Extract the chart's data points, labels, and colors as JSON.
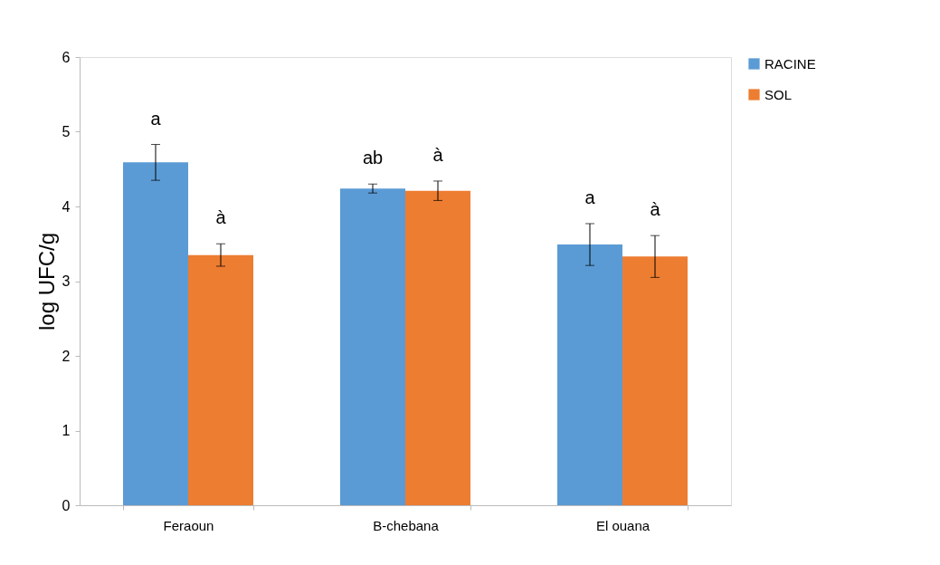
{
  "chart_data": {
    "type": "bar",
    "ylabel": "log UFC/g",
    "categories": [
      "Feraoun",
      "B-chebana",
      "El ouana"
    ],
    "series": [
      {
        "name": "RACINE",
        "color": "#5b9bd5",
        "values": [
          4.59,
          4.24,
          3.49
        ],
        "errors": [
          0.24,
          0.06,
          0.28
        ]
      },
      {
        "name": "SOL",
        "color": "#ed7d31",
        "values": [
          3.35,
          4.21,
          3.33
        ],
        "errors": [
          0.15,
          0.13,
          0.28
        ]
      }
    ],
    "ylim": [
      0,
      6
    ],
    "yticks": [
      0,
      1,
      2,
      3,
      4,
      5,
      6
    ],
    "grid": false,
    "legend": "right",
    "annotations": [
      "a",
      "à",
      "ab",
      "à",
      "a",
      "à"
    ]
  }
}
